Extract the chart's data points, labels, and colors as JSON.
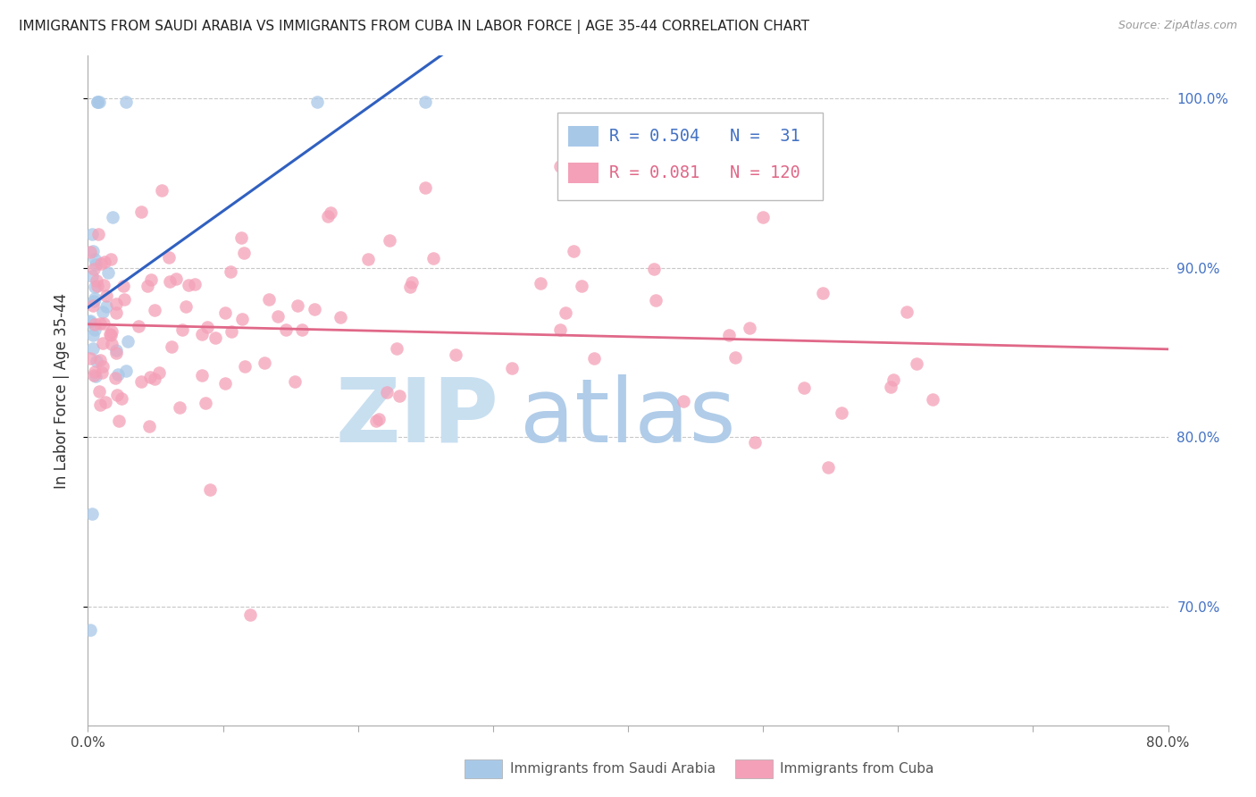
{
  "title": "IMMIGRANTS FROM SAUDI ARABIA VS IMMIGRANTS FROM CUBA IN LABOR FORCE | AGE 35-44 CORRELATION CHART",
  "source": "Source: ZipAtlas.com",
  "ylabel": "In Labor Force | Age 35-44",
  "xlim": [
    0.0,
    0.8
  ],
  "ylim": [
    0.63,
    1.025
  ],
  "saudi_R": 0.504,
  "saudi_N": 31,
  "cuba_R": 0.081,
  "cuba_N": 120,
  "saudi_color": "#a8c8e8",
  "cuba_color": "#f4a0b8",
  "saudi_line_color": "#3060c0",
  "cuba_line_color": "#e06888",
  "watermark_zip_color": "#c8dff0",
  "watermark_atlas_color": "#b0cce8",
  "right_ytick_color": "#4472c4",
  "legend_saudi_text_color": "#4472c4",
  "legend_cuba_text_color": "#e06888",
  "xtick_label_left": "0.0%",
  "xtick_label_right": "80.0%",
  "right_ytick_labels": [
    "70.0%",
    "80.0%",
    "90.0%",
    "100.0%"
  ],
  "right_ytick_values": [
    0.7,
    0.8,
    0.9,
    1.0
  ],
  "num_xticks": 9
}
